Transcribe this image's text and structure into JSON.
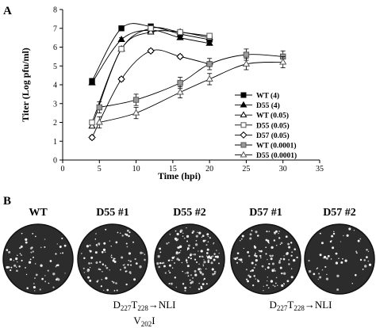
{
  "panel_a": {
    "label": "A"
  },
  "panel_b": {
    "label": "B",
    "plaques": [
      {
        "label": "WT",
        "density": 70
      },
      {
        "label": "D55 #1",
        "density": 95
      },
      {
        "label": "D55 #2",
        "density": 150
      },
      {
        "label": "D57 #1",
        "density": 120
      },
      {
        "label": "D57 #2",
        "density": 55
      }
    ],
    "mutations": [
      {
        "name": "d55",
        "line1": [
          "D",
          "227",
          "T",
          "228",
          "→NLI"
        ],
        "line2": [
          "V",
          "202",
          "I"
        ]
      },
      {
        "name": "d57",
        "line1": [
          "D",
          "227",
          "T",
          "228",
          "→NLI"
        ],
        "line2": []
      }
    ]
  },
  "chart_data": {
    "type": "line",
    "xlabel": "Time (hpi)",
    "ylabel": "Titer (Log pfu/ml)",
    "xlim": [
      0,
      35
    ],
    "ylim": [
      0,
      8
    ],
    "xticks": [
      0,
      5,
      10,
      15,
      20,
      25,
      30,
      35
    ],
    "yticks": [
      0,
      1,
      2,
      3,
      4,
      5,
      6,
      7,
      8
    ],
    "grid": false,
    "legend_position": "right",
    "series": [
      {
        "name": "WT (4)",
        "marker": "square-filled",
        "x": [
          4,
          8,
          12,
          16,
          20
        ],
        "y": [
          4.2,
          7.0,
          7.1,
          6.7,
          6.4
        ],
        "err": [
          0.1,
          0.1,
          0.1,
          0.1,
          0.1
        ]
      },
      {
        "name": "D55 (4)",
        "marker": "triangle-filled",
        "x": [
          4,
          8,
          12,
          16,
          20
        ],
        "y": [
          4.1,
          6.4,
          6.9,
          6.5,
          6.2
        ],
        "err": [
          0.1,
          0.1,
          0.1,
          0.1,
          0.1
        ]
      },
      {
        "name": "WT (0.05)",
        "marker": "triangle-open",
        "x": [
          4,
          8,
          12,
          16,
          20
        ],
        "y": [
          1.8,
          5.9,
          6.8,
          6.8,
          6.5
        ],
        "err": [
          0.1,
          0.1,
          0.1,
          0.1,
          0.1
        ]
      },
      {
        "name": "D55 (0.05)",
        "marker": "square-open",
        "x": [
          4,
          8,
          12,
          16,
          20
        ],
        "y": [
          2.0,
          5.9,
          7.0,
          6.8,
          6.6
        ],
        "err": [
          0.1,
          0.1,
          0.1,
          0.1,
          0.1
        ]
      },
      {
        "name": "D57 (0.05)",
        "marker": "diamond-open",
        "x": [
          4,
          8,
          12,
          16,
          20
        ],
        "y": [
          1.2,
          4.3,
          5.8,
          5.5,
          5.1
        ],
        "err": [
          0.1,
          0.1,
          0.1,
          0.1,
          0.1
        ]
      },
      {
        "name": "WT (0.0001)",
        "marker": "square-gray",
        "x": [
          5,
          10,
          16,
          20,
          25,
          30
        ],
        "y": [
          2.8,
          3.2,
          4.1,
          5.1,
          5.6,
          5.5
        ],
        "err": [
          0.3,
          0.3,
          0.3,
          0.3,
          0.3,
          0.3
        ]
      },
      {
        "name": "D55 (0.0001)",
        "marker": "triangle-open-gray",
        "x": [
          5,
          10,
          16,
          20,
          25,
          30
        ],
        "y": [
          2.0,
          2.5,
          3.6,
          4.3,
          5.1,
          5.2
        ],
        "err": [
          0.3,
          0.3,
          0.3,
          0.3,
          0.3,
          0.3
        ]
      }
    ]
  }
}
